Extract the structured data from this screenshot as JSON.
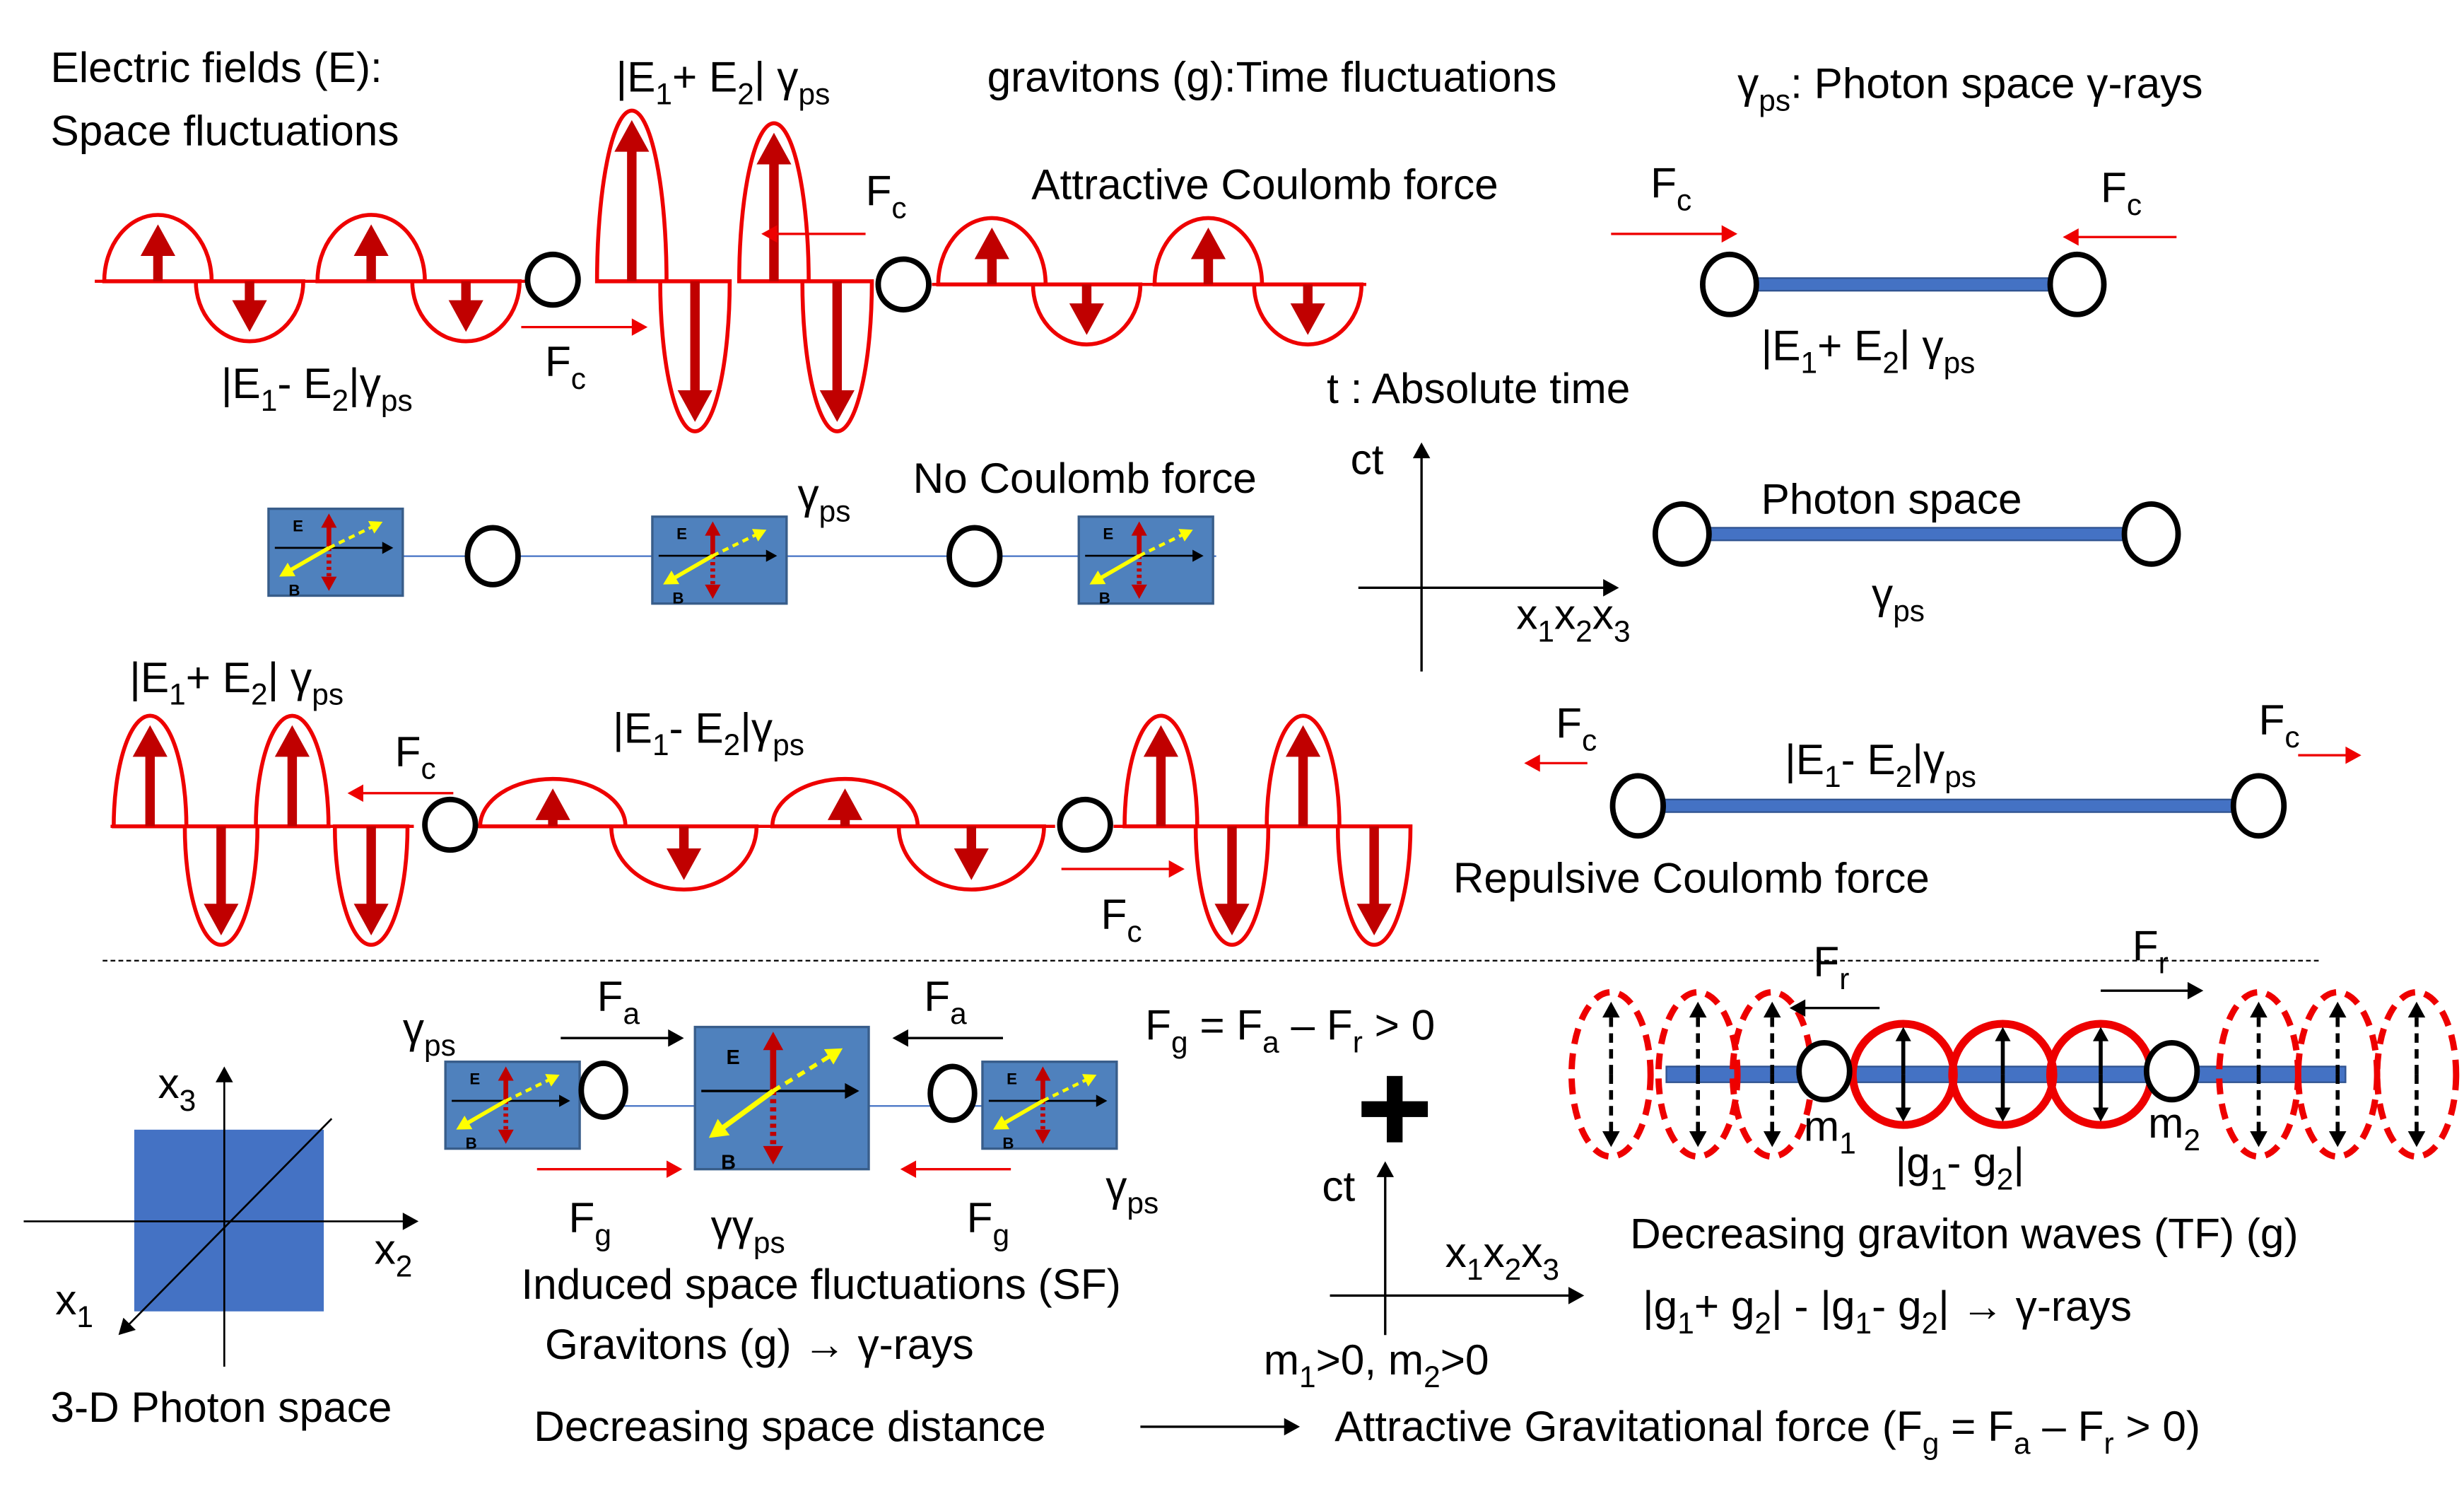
{
  "labels": [
    [
      {
        "t": "Electric fields (E):"
      }
    ],
    [
      {
        "t": "Space fluctuations"
      }
    ],
    [
      {
        "t": "|E",
        "s": "1"
      },
      {
        "t": "+ E",
        "s": "2"
      },
      {
        "t": "| γ",
        "s": "ps"
      }
    ],
    [
      {
        "t": "gravitons (g):Time fluctuations"
      }
    ],
    [
      {
        "t": "γ",
        "s": "ps"
      },
      {
        "t": ": Photon space γ-rays"
      }
    ],
    [
      {
        "t": "F",
        "s": "c"
      }
    ],
    [
      {
        "t": "Attractive Coulomb force"
      }
    ],
    [
      {
        "t": "F",
        "s": "c"
      }
    ],
    [
      {
        "t": "F",
        "s": "c"
      }
    ],
    [
      {
        "t": "|E",
        "s": "1"
      },
      {
        "t": "- E",
        "s": "2"
      },
      {
        "t": "|γ",
        "s": "ps"
      }
    ],
    [
      {
        "t": "F",
        "s": "c"
      }
    ],
    [
      {
        "t": "|E",
        "s": "1"
      },
      {
        "t": "+ E",
        "s": "2"
      },
      {
        "t": "| γ",
        "s": "ps"
      }
    ],
    [
      {
        "t": "t : Absolute time"
      }
    ],
    [
      {
        "t": "ct"
      }
    ],
    [
      {
        "t": "γ",
        "s": "ps"
      }
    ],
    [
      {
        "t": "No Coulomb force"
      }
    ],
    [
      {
        "t": "Photon space"
      }
    ],
    [
      {
        "t": "γ",
        "s": "ps"
      }
    ],
    [
      {
        "t": "x",
        "s": "1"
      },
      {
        "t": "x",
        "s": "2"
      },
      {
        "t": "x",
        "s": "3"
      }
    ],
    [
      {
        "t": "|E",
        "s": "1"
      },
      {
        "t": "+ E",
        "s": "2"
      },
      {
        "t": "| γ",
        "s": "ps"
      }
    ],
    [
      {
        "t": "|E",
        "s": "1"
      },
      {
        "t": "- E",
        "s": "2"
      },
      {
        "t": "|γ",
        "s": "ps"
      }
    ],
    [
      {
        "t": "F",
        "s": "c"
      }
    ],
    [
      {
        "t": "F",
        "s": "c"
      }
    ],
    [
      {
        "t": "F",
        "s": "c"
      }
    ],
    [
      {
        "t": "|E",
        "s": "1"
      },
      {
        "t": "- E",
        "s": "2"
      },
      {
        "t": "|γ",
        "s": "ps"
      }
    ],
    [
      {
        "t": "Repulsive Coulomb force"
      }
    ],
    [
      {
        "t": "F",
        "s": "c"
      }
    ],
    [
      {
        "t": "γ",
        "s": "ps"
      }
    ],
    [
      {
        "t": "F",
        "s": "a"
      }
    ],
    [
      {
        "t": "F",
        "s": "a"
      }
    ],
    [
      {
        "t": "F",
        "s": "g"
      },
      {
        "t": " = F",
        "s": "a"
      },
      {
        "t": " – F",
        "s": "r"
      },
      {
        "t": " > 0"
      }
    ],
    [
      {
        "t": "F",
        "s": "r"
      }
    ],
    [
      {
        "t": "F",
        "s": "r"
      }
    ],
    [
      {
        "t": "x",
        "s": "3"
      }
    ],
    [
      {
        "t": "m",
        "s": "1"
      }
    ],
    [
      {
        "t": "m",
        "s": "2"
      }
    ],
    [
      {
        "t": "|g",
        "s": "1"
      },
      {
        "t": "- g",
        "s": "2"
      },
      {
        "t": "|"
      }
    ],
    [
      {
        "t": "γ",
        "s": "ps"
      }
    ],
    [
      {
        "t": "F",
        "s": "g"
      }
    ],
    [
      {
        "t": "γγ",
        "s": "ps"
      }
    ],
    [
      {
        "t": "F",
        "s": "g"
      }
    ],
    [
      {
        "t": "ct"
      }
    ],
    [
      {
        "t": "x",
        "s": "2"
      }
    ],
    [
      {
        "t": "Decreasing graviton waves (TF) (g)"
      }
    ],
    [
      {
        "t": "x",
        "s": "1"
      },
      {
        "t": "x",
        "s": "2"
      },
      {
        "t": "x",
        "s": "3"
      }
    ],
    [
      {
        "t": "Induced space fluctuations (SF)"
      }
    ],
    [
      {
        "t": "x",
        "s": "1"
      }
    ],
    [
      {
        "t": "|g",
        "s": "1"
      },
      {
        "t": "+ g",
        "s": "2"
      },
      {
        "t": "| - |g",
        "s": "1"
      },
      {
        "t": "- g",
        "s": "2"
      },
      {
        "t": "| → γ-rays"
      }
    ],
    [
      {
        "t": "Gravitons (g) → γ-rays"
      }
    ],
    [
      {
        "t": "m",
        "s": "1"
      },
      {
        "t": ">0, m",
        "s": "2"
      },
      {
        "t": ">0"
      }
    ],
    [
      {
        "t": "3-D Photon space"
      }
    ],
    [
      {
        "t": "Decreasing space distance"
      }
    ],
    [
      {
        "t": "Attractive Gravitational force (F",
        "s": "g"
      },
      {
        "t": " = F",
        "s": "a"
      },
      {
        "t": " – F",
        "s": "r"
      },
      {
        "t": " > 0)"
      }
    ]
  ],
  "box_labels": {
    "e": "E",
    "b": "B"
  }
}
